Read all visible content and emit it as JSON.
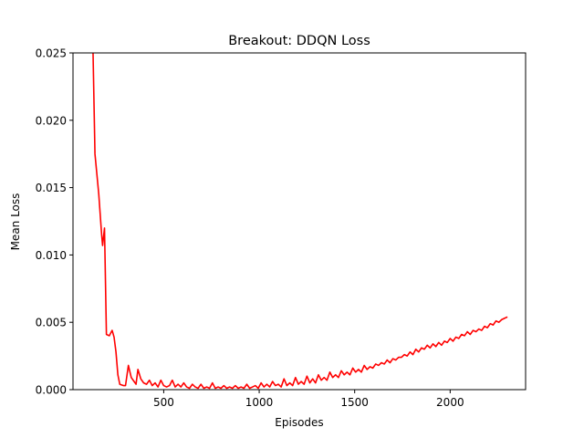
{
  "chart_data": {
    "type": "line",
    "title": "Breakout: DDQN Loss",
    "xlabel": "Episodes",
    "ylabel": "Mean Loss",
    "xlim": [
      25,
      2395
    ],
    "ylim": [
      0,
      0.025
    ],
    "x_ticks": [
      {
        "value": 500,
        "label": "500"
      },
      {
        "value": 1000,
        "label": "1000"
      },
      {
        "value": 1500,
        "label": "1500"
      },
      {
        "value": 2000,
        "label": "2000"
      }
    ],
    "y_ticks": [
      {
        "value": 0,
        "label": "0.000"
      },
      {
        "value": 0.005,
        "label": "0.005"
      },
      {
        "value": 0.01,
        "label": "0.010"
      },
      {
        "value": 0.015,
        "label": "0.015"
      },
      {
        "value": 0.02,
        "label": "0.020"
      },
      {
        "value": 0.025,
        "label": "0.025"
      }
    ],
    "grid": false,
    "series": [
      {
        "color": "#ff0000",
        "x": [
          130,
          140,
          160,
          175,
          180,
          190,
          200,
          215,
          230,
          240,
          250,
          260,
          270,
          290,
          300,
          305,
          315,
          330,
          345,
          355,
          365,
          380,
          395,
          410,
          425,
          440,
          455,
          470,
          485,
          500,
          515,
          530,
          545,
          560,
          575,
          590,
          605,
          620,
          635,
          650,
          665,
          680,
          695,
          710,
          725,
          740,
          755,
          770,
          785,
          800,
          815,
          830,
          845,
          860,
          875,
          890,
          905,
          920,
          935,
          950,
          965,
          980,
          995,
          1010,
          1025,
          1040,
          1055,
          1070,
          1085,
          1100,
          1115,
          1130,
          1145,
          1160,
          1175,
          1190,
          1205,
          1220,
          1235,
          1250,
          1265,
          1280,
          1295,
          1310,
          1325,
          1340,
          1355,
          1370,
          1385,
          1400,
          1415,
          1430,
          1445,
          1460,
          1475,
          1490,
          1505,
          1520,
          1535,
          1550,
          1565,
          1580,
          1595,
          1610,
          1625,
          1640,
          1655,
          1670,
          1685,
          1700,
          1715,
          1730,
          1745,
          1760,
          1775,
          1790,
          1805,
          1820,
          1835,
          1850,
          1865,
          1880,
          1895,
          1910,
          1925,
          1940,
          1955,
          1970,
          1985,
          2000,
          2015,
          2030,
          2045,
          2060,
          2075,
          2090,
          2105,
          2120,
          2135,
          2150,
          2165,
          2180,
          2195,
          2210,
          2225,
          2240,
          2255,
          2270,
          2285,
          2300
        ],
        "y": [
          0.025,
          0.0175,
          0.0145,
          0.0115,
          0.0107,
          0.012,
          0.0041,
          0.004,
          0.0044,
          0.0039,
          0.0028,
          0.0011,
          0.0004,
          0.0003,
          0.0003,
          0.0008,
          0.0018,
          0.0009,
          0.0006,
          0.0004,
          0.0015,
          0.0008,
          0.0005,
          0.0004,
          0.0007,
          0.0003,
          0.0005,
          0.0002,
          0.0007,
          0.0003,
          0.0002,
          0.0003,
          0.0007,
          0.0002,
          0.0004,
          0.0002,
          0.0005,
          0.0002,
          0.0001,
          0.0004,
          0.0002,
          0.0001,
          0.0004,
          0.0001,
          0.0002,
          0.0001,
          0.0005,
          0.0001,
          0.0002,
          0.0001,
          0.0003,
          0.0001,
          0.0002,
          0.0001,
          0.0003,
          0.0001,
          0.0002,
          0.0001,
          0.0004,
          0.0001,
          0.0002,
          0.0003,
          0.0001,
          0.0005,
          0.0002,
          0.0004,
          0.0002,
          0.0006,
          0.0003,
          0.0004,
          0.0002,
          0.0008,
          0.0003,
          0.0005,
          0.0003,
          0.0009,
          0.0004,
          0.0006,
          0.0004,
          0.001,
          0.0005,
          0.0008,
          0.0005,
          0.0011,
          0.0007,
          0.0009,
          0.0007,
          0.0013,
          0.0009,
          0.0011,
          0.0009,
          0.0014,
          0.0011,
          0.0013,
          0.0011,
          0.0016,
          0.0013,
          0.0015,
          0.0013,
          0.0018,
          0.0015,
          0.0017,
          0.0016,
          0.0019,
          0.0018,
          0.002,
          0.0019,
          0.0022,
          0.002,
          0.0023,
          0.0022,
          0.0024,
          0.0024,
          0.0026,
          0.0025,
          0.0028,
          0.0026,
          0.003,
          0.0028,
          0.0031,
          0.003,
          0.0033,
          0.0031,
          0.0034,
          0.0032,
          0.0035,
          0.0033,
          0.0036,
          0.0035,
          0.0038,
          0.0036,
          0.0039,
          0.0038,
          0.0041,
          0.004,
          0.0043,
          0.0041,
          0.0044,
          0.0043,
          0.0045,
          0.0044,
          0.0047,
          0.0046,
          0.0049,
          0.0048,
          0.0051,
          0.005,
          0.0052,
          0.0053,
          0.0054
        ]
      }
    ]
  }
}
